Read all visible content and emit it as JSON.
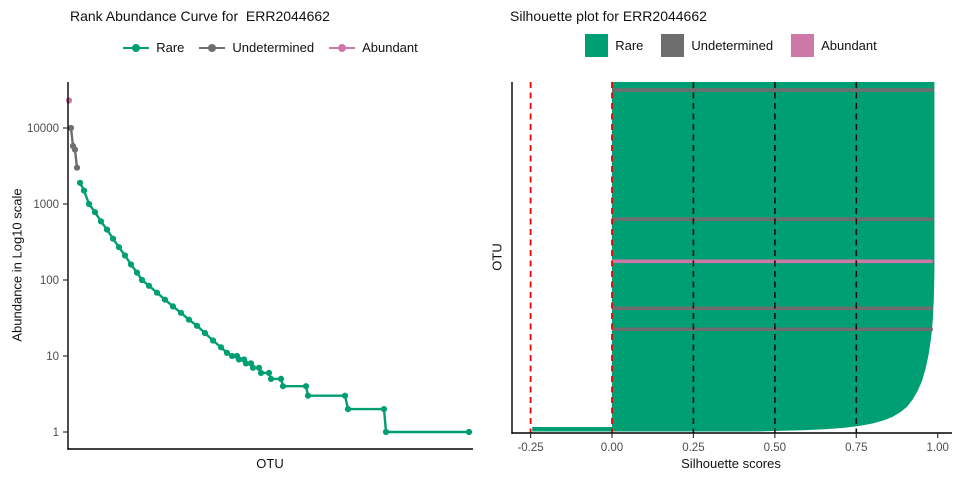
{
  "panels": {
    "left": {
      "title": "Rank Abundance Curve for  ERR2044662",
      "ylabel": "Abundance in Log10 scale",
      "xlabel": "OTU",
      "legend": [
        {
          "label": "Rare",
          "color": "#009E73"
        },
        {
          "label": "Undetermined",
          "color": "#6E6E6E"
        },
        {
          "label": "Abundant",
          "color": "#CC79A7"
        }
      ]
    },
    "right": {
      "title": "Silhouette plot for ERR2044662",
      "ylabel": "OTU",
      "xlabel": "Silhouette scores",
      "legend": [
        {
          "label": "Rare",
          "color": "#009E73"
        },
        {
          "label": "Undetermined",
          "color": "#6E6E6E"
        },
        {
          "label": "Abundant",
          "color": "#CC79A7"
        }
      ]
    }
  },
  "colors": {
    "rare": "#009E73",
    "undetermined": "#6E6E6E",
    "abundant": "#CC79A7",
    "threshold_line": "#EE0000",
    "guide_line": "#111111",
    "axis": "#000000",
    "tick_label": "#4D4D4D"
  },
  "chart_data": [
    {
      "type": "line",
      "title": "Rank Abundance Curve for  ERR2044662",
      "xlabel": "OTU",
      "ylabel": "Abundance in Log10 scale",
      "yscale": "log10",
      "ylim": [
        1,
        30000
      ],
      "xlim": [
        0,
        404
      ],
      "yticks": [
        1,
        10,
        100,
        1000,
        10000
      ],
      "grid": false,
      "legend_position": "top",
      "series": [
        {
          "name": "Abundant",
          "color": "#CC79A7",
          "points": [
            [
              1,
              23000
            ]
          ]
        },
        {
          "name": "Undetermined",
          "color": "#6E6E6E",
          "points": [
            [
              3,
              10000
            ],
            [
              5,
              5800
            ],
            [
              7,
              5200
            ],
            [
              9,
              3000
            ]
          ]
        },
        {
          "name": "Rare",
          "color": "#009E73",
          "points": [
            [
              12,
              1900
            ],
            [
              16,
              1500
            ],
            [
              21,
              1000
            ],
            [
              27,
              780
            ],
            [
              33,
              590
            ],
            [
              39,
              460
            ],
            [
              45,
              350
            ],
            [
              51,
              270
            ],
            [
              57,
              210
            ],
            [
              63,
              160
            ],
            [
              69,
              125
            ],
            [
              74,
              100
            ],
            [
              81,
              84
            ],
            [
              89,
              68
            ],
            [
              97,
              55
            ],
            [
              105,
              45
            ],
            [
              113,
              37
            ],
            [
              121,
              30
            ],
            [
              129,
              25
            ],
            [
              137,
              20
            ],
            [
              145,
              16
            ],
            [
              153,
              13
            ],
            [
              159,
              11
            ],
            [
              164,
              10
            ],
            [
              169,
              10
            ],
            [
              171,
              9
            ],
            [
              176,
              9
            ],
            [
              178,
              8
            ],
            [
              183,
              8
            ],
            [
              185,
              7
            ],
            [
              191,
              7
            ],
            [
              193,
              6
            ],
            [
              201,
              6
            ],
            [
              203,
              5
            ],
            [
              213,
              5
            ],
            [
              215,
              4
            ],
            [
              238,
              4
            ],
            [
              240,
              3
            ],
            [
              277,
              3
            ],
            [
              280,
              2
            ],
            [
              316,
              2
            ],
            [
              318,
              1
            ],
            [
              401,
              1
            ]
          ]
        }
      ]
    },
    {
      "type": "area",
      "title": "Silhouette plot for ERR2044662",
      "xlabel": "Silhouette scores",
      "ylabel": "OTU",
      "xlim": [
        -0.31,
        1.04
      ],
      "xticks": [
        -0.25,
        0.0,
        0.25,
        0.5,
        0.75,
        1.0
      ],
      "xtick_labels": [
        "-0.25",
        "0.00",
        "0.25",
        "0.50",
        "0.75",
        "1.00"
      ],
      "main_cluster": "Rare",
      "fill_color": "#009E73",
      "right_edge_profile": [
        [
          0.0,
          0.99
        ],
        [
          0.55,
          0.99
        ],
        [
          0.62,
          0.988
        ],
        [
          0.68,
          0.985
        ],
        [
          0.73,
          0.98
        ],
        [
          0.78,
          0.972
        ],
        [
          0.82,
          0.963
        ],
        [
          0.855,
          0.952
        ],
        [
          0.885,
          0.938
        ],
        [
          0.91,
          0.922
        ],
        [
          0.93,
          0.905
        ],
        [
          0.945,
          0.885
        ],
        [
          0.958,
          0.862
        ],
        [
          0.968,
          0.835
        ],
        [
          0.977,
          0.8
        ],
        [
          0.984,
          0.76
        ],
        [
          0.989,
          0.715
        ],
        [
          0.993,
          0.66
        ],
        [
          0.996,
          0.595
        ],
        [
          0.998,
          0.525
        ],
        [
          1.0,
          0.45
        ]
      ],
      "negative_row": {
        "min_score": -0.245,
        "height_frac": 0.01
      },
      "stripes": [
        {
          "frac": 0.0229,
          "category": "Undetermined",
          "color": "#6E6E6E"
        },
        {
          "frac": 0.3925,
          "category": "Undetermined",
          "color": "#6E6E6E"
        },
        {
          "frac": 0.5129,
          "category": "Abundant",
          "color": "#CC79A7"
        },
        {
          "frac": 0.6476,
          "category": "Undetermined",
          "color": "#6E6E6E"
        },
        {
          "frac": 0.7077,
          "category": "Undetermined",
          "color": "#6E6E6E"
        }
      ],
      "vlines": [
        {
          "x": -0.25,
          "style": "dashed",
          "color": "#EE0000"
        },
        {
          "x": 0.0,
          "style": "dashed",
          "color": "#EE0000"
        },
        {
          "x": 0.25,
          "style": "dashed",
          "color": "#111111"
        },
        {
          "x": 0.5,
          "style": "dashed",
          "color": "#111111"
        },
        {
          "x": 0.75,
          "style": "dashed",
          "color": "#111111"
        }
      ]
    }
  ]
}
